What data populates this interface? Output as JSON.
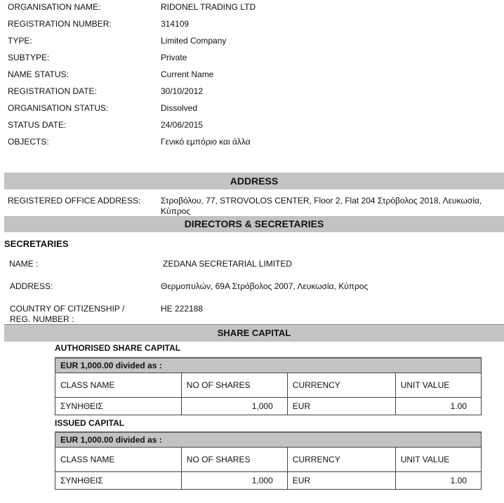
{
  "details": [
    {
      "label": "ORGANISATION NAME:",
      "value": "RIDONEL TRADING LTD"
    },
    {
      "label": "REGISTRATION NUMBER:",
      "value": "314109"
    },
    {
      "label": "TYPE:",
      "value": "Limited Company"
    },
    {
      "label": "SUBTYPE:",
      "value": "Private"
    },
    {
      "label": "NAME STATUS:",
      "value": "Current Name"
    },
    {
      "label": "REGISTRATION DATE:",
      "value": "30/10/2012"
    },
    {
      "label": "ORGANISATION STATUS:",
      "value": "Dissolved"
    },
    {
      "label": "STATUS DATE:",
      "value": "24/06/2015"
    },
    {
      "label": "OBJECTS:",
      "value": "Γενικό εμπόριο και άλλα"
    }
  ],
  "address": {
    "heading": "ADDRESS",
    "label": "REGISTERED OFFICE ADDRESS:",
    "line1": "Στροβόλου, 77, STROVOLOS CENTER, Floor 2, Flat 204 Στρόβολος 2018, Λευκωσία,",
    "line2": "Κύπρος"
  },
  "directors": {
    "heading": "DIRECTORS & SECRETARIES",
    "subheading": "SECRETARIES",
    "name_label": "NAME :",
    "name_value": "ZEDANA SECRETARIAL LIMITED",
    "address_label": "ADDRESS:",
    "address_value": "Θερμοπυλών, 69A  Στρόβολος 2007, Λευκωσία, Κύπρος",
    "reg_label_1": "COUNTRY OF CITIZENSHIP /",
    "reg_label_2": "REG. NUMBER :",
    "reg_value": "HE 222188"
  },
  "share_capital": {
    "heading": "SHARE CAPITAL",
    "tables": [
      {
        "title": "AUTHORISED SHARE CAPITAL",
        "caption": "EUR 1,000.00 divided as :",
        "columns": [
          "CLASS NAME",
          "NO OF SHARES",
          "CURRENCY",
          "UNIT VALUE"
        ],
        "rows": [
          [
            "ΣΥΝΗΘΕΙΣ",
            "1,000",
            "EUR",
            "1.00"
          ]
        ]
      },
      {
        "title": "ISSUED CAPITAL",
        "caption": "EUR 1,000.00 divided as :",
        "columns": [
          "CLASS NAME",
          "NO OF SHARES",
          "CURRENCY",
          "UNIT VALUE"
        ],
        "rows": [
          [
            "ΣΥΝΗΘΕΙΣ",
            "1,000",
            "EUR",
            "1.00"
          ]
        ]
      }
    ]
  }
}
